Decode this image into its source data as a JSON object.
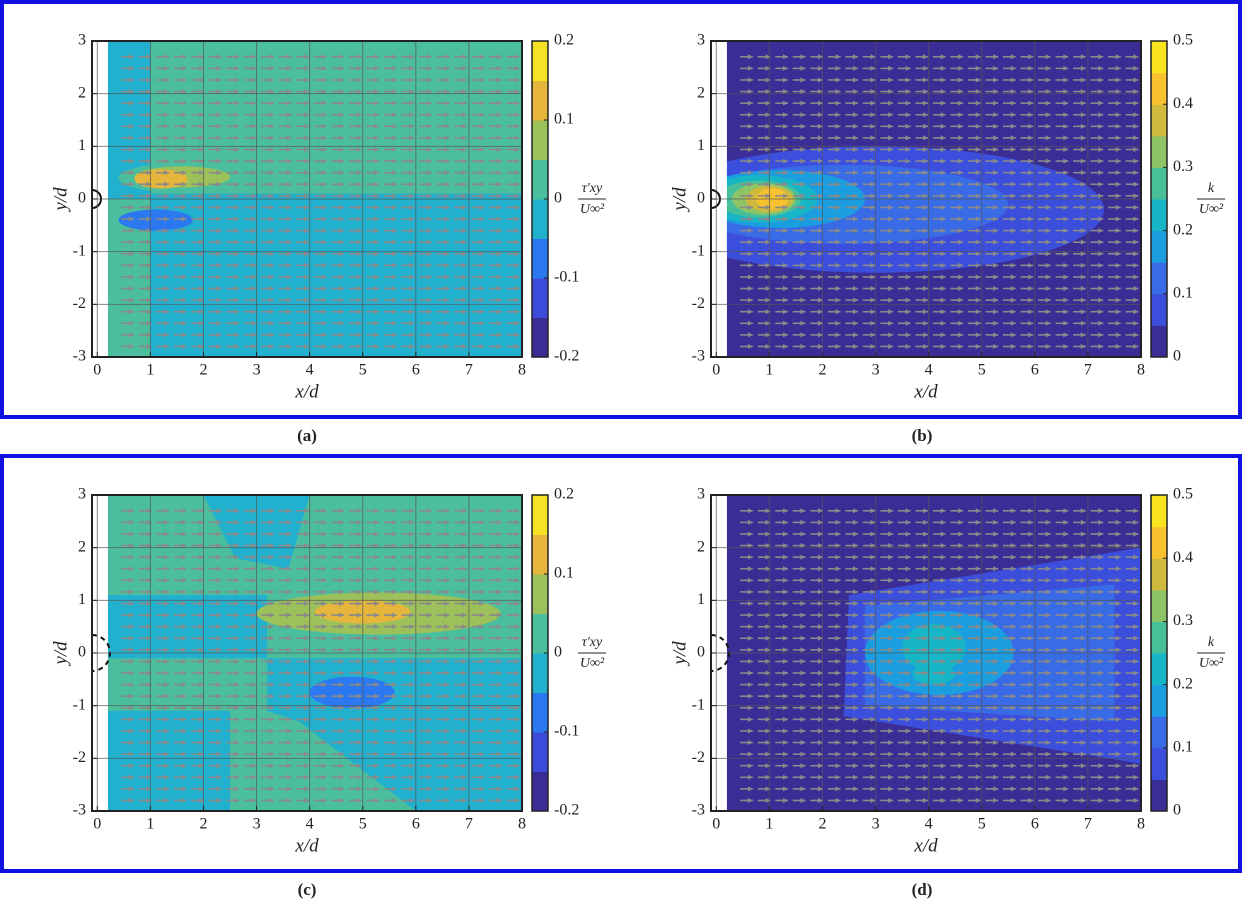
{
  "chart_data": [
    {
      "type": "contour",
      "caption": "(a)",
      "xlabel": "x/d",
      "ylabel": "y/d",
      "xlim": [
        -0.1,
        8
      ],
      "ylim": [
        -3,
        3
      ],
      "xticks": [
        0,
        1,
        2,
        3,
        4,
        5,
        6,
        7,
        8
      ],
      "yticks": [
        -3,
        -2,
        -1,
        0,
        1,
        2,
        3
      ],
      "grid": true,
      "clim": [
        -0.2,
        0.2
      ],
      "cticks": [
        -0.2,
        -0.1,
        0,
        0.1,
        0.2
      ],
      "colorbar_label": {
        "numerator": "τ′xy",
        "denominator": "U∞²"
      },
      "colormap": [
        "#3b2d96",
        "#3c4bd9",
        "#2c78f0",
        "#22b0cf",
        "#4bbf9d",
        "#9cc05a",
        "#e6b53c",
        "#f7e125"
      ]
    },
    {
      "type": "contour",
      "caption": "(b)",
      "xlabel": "x/d",
      "ylabel": "y/d",
      "xlim": [
        -0.1,
        8
      ],
      "ylim": [
        -3,
        3
      ],
      "xticks": [
        0,
        1,
        2,
        3,
        4,
        5,
        6,
        7,
        8
      ],
      "yticks": [
        -3,
        -2,
        -1,
        0,
        1,
        2,
        3
      ],
      "grid": true,
      "clim": [
        0,
        0.5
      ],
      "cticks": [
        0,
        0.1,
        0.2,
        0.3,
        0.4,
        0.5
      ],
      "colorbar_label": {
        "numerator": "k",
        "denominator": "U∞²"
      },
      "colormap": [
        "#3b2d96",
        "#3c4fdc",
        "#3a6be6",
        "#1a9ee0",
        "#16b6c7",
        "#47c09a",
        "#8fc466",
        "#d0ba3d",
        "#f8c22f",
        "#f9e41f"
      ]
    },
    {
      "type": "contour",
      "caption": "(c)",
      "xlabel": "x/d",
      "ylabel": "y/d",
      "xlim": [
        -0.1,
        8
      ],
      "ylim": [
        -3,
        3
      ],
      "xticks": [
        0,
        1,
        2,
        3,
        4,
        5,
        6,
        7,
        8
      ],
      "yticks": [
        -3,
        -2,
        -1,
        0,
        1,
        2,
        3
      ],
      "grid": true,
      "clim": [
        -0.2,
        0.2
      ],
      "cticks": [
        -0.2,
        -0.1,
        0,
        0.1,
        0.2
      ],
      "colorbar_label": {
        "numerator": "τ′xy",
        "denominator": "U∞²"
      },
      "colormap": [
        "#3b2d96",
        "#3c4bd9",
        "#2c78f0",
        "#22b0cf",
        "#4bbf9d",
        "#9cc05a",
        "#e6b53c",
        "#f7e125"
      ]
    },
    {
      "type": "contour",
      "caption": "(d)",
      "xlabel": "x/d",
      "ylabel": "y/d",
      "xlim": [
        -0.1,
        8
      ],
      "ylim": [
        -3,
        3
      ],
      "xticks": [
        0,
        1,
        2,
        3,
        4,
        5,
        6,
        7,
        8
      ],
      "yticks": [
        -3,
        -2,
        -1,
        0,
        1,
        2,
        3
      ],
      "grid": true,
      "clim": [
        0,
        0.5
      ],
      "cticks": [
        0,
        0.1,
        0.2,
        0.3,
        0.4,
        0.5
      ],
      "colorbar_label": {
        "numerator": "k",
        "denominator": "U∞²"
      },
      "colormap": [
        "#3b2d96",
        "#3c4fdc",
        "#3a6be6",
        "#1a9ee0",
        "#16b6c7",
        "#47c09a",
        "#8fc466",
        "#d0ba3d",
        "#f8c22f",
        "#f9e41f"
      ]
    }
  ]
}
